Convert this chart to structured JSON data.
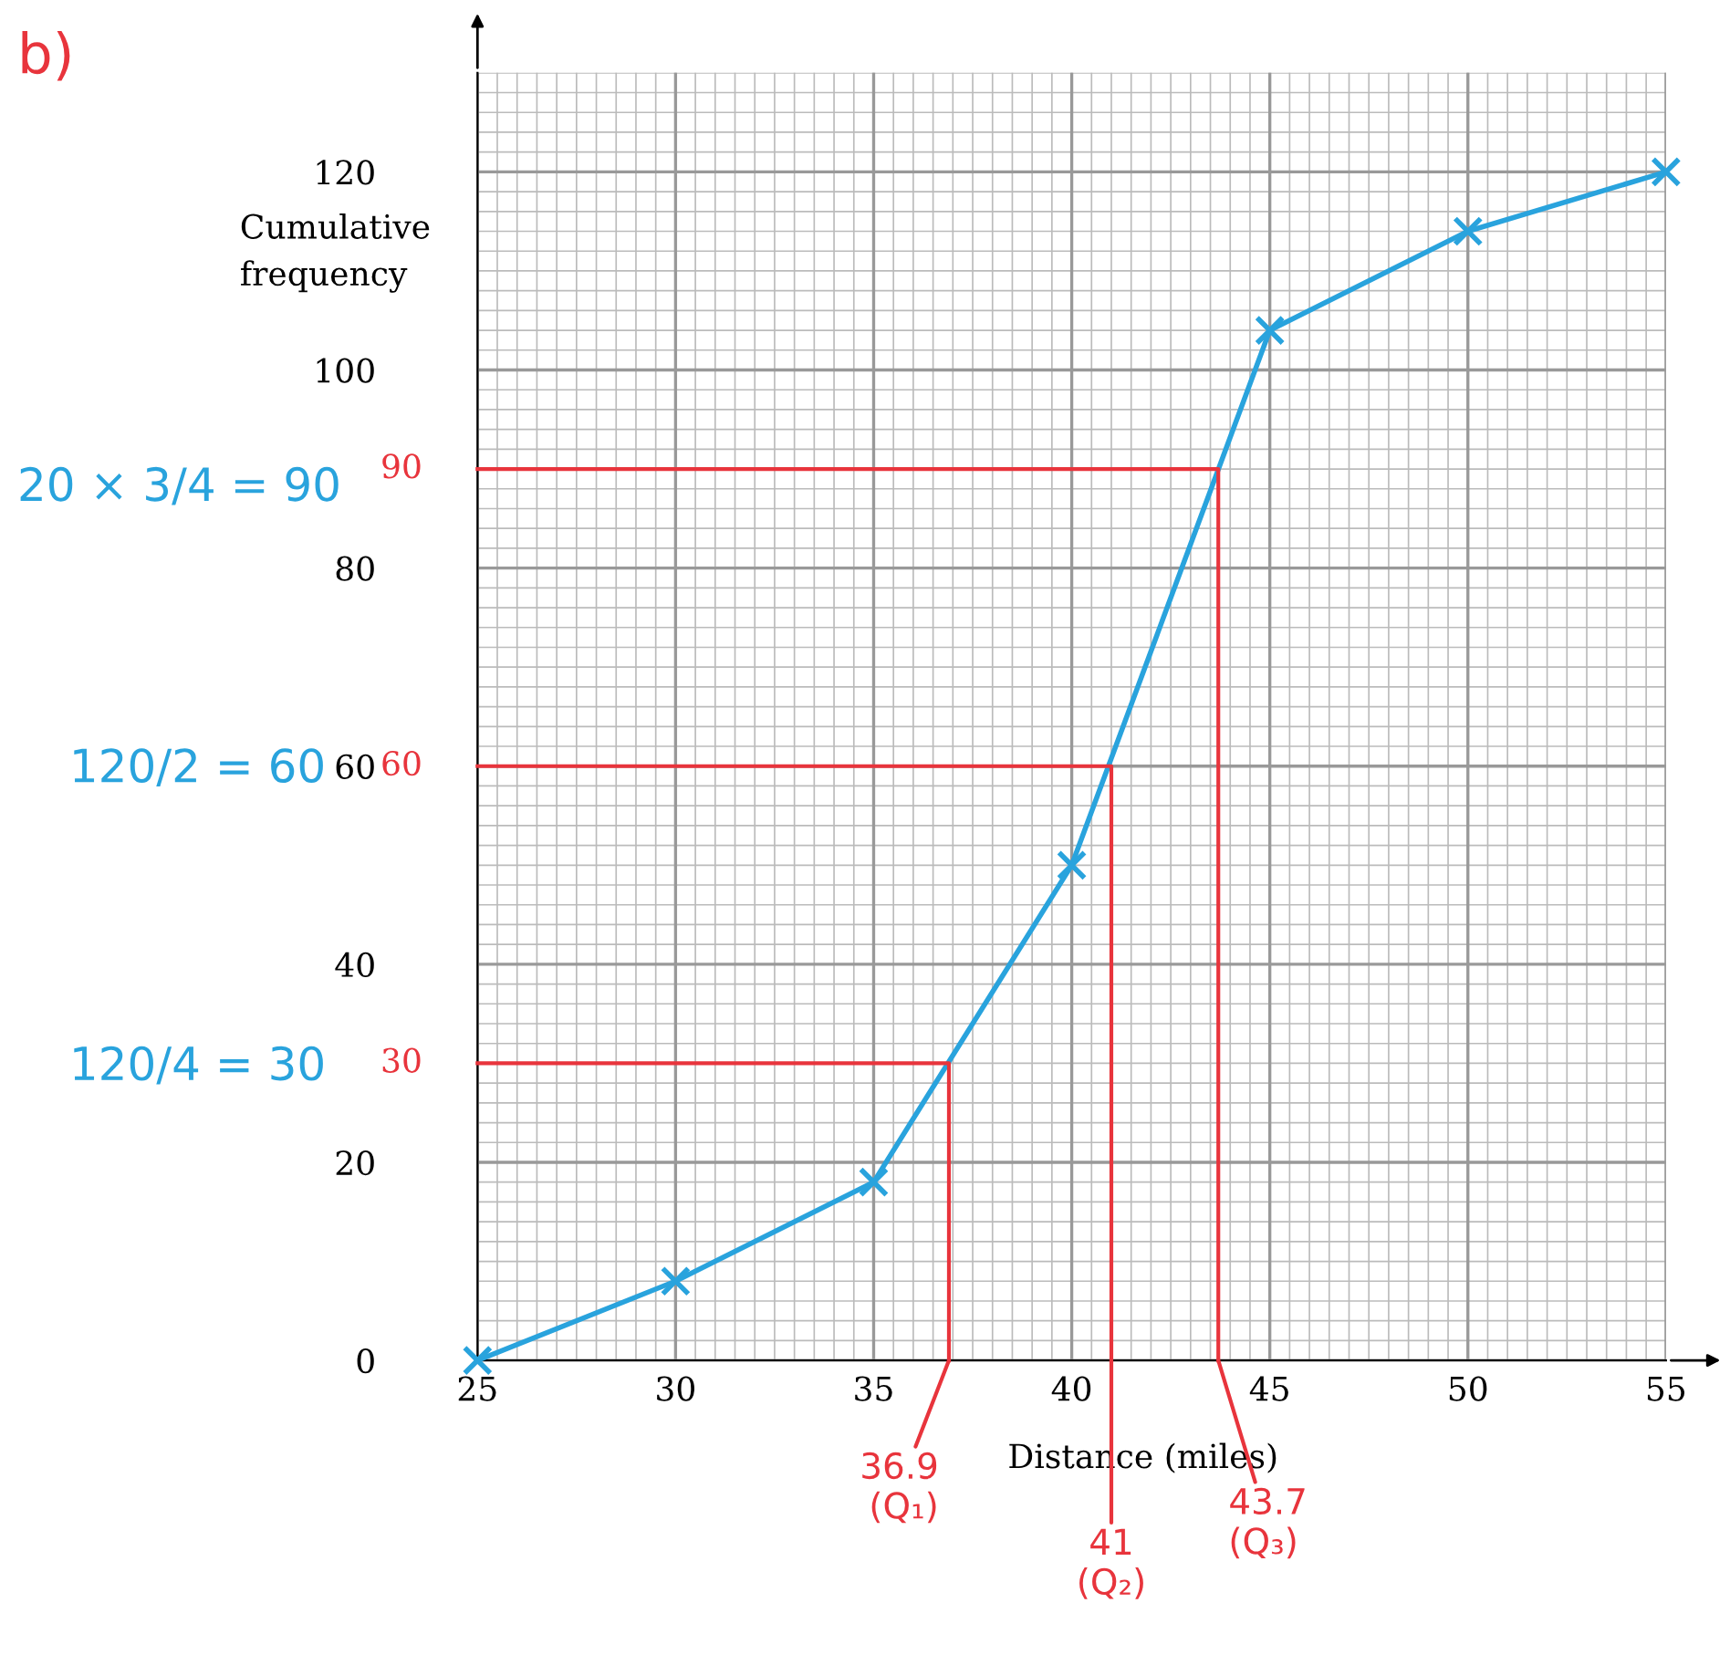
{
  "chart_data": {
    "type": "line",
    "xlabel": "Distance (miles)",
    "ylabel": "Cumulative\nfrequency",
    "xlim": [
      25,
      55
    ],
    "ylim": [
      0,
      130
    ],
    "xticks": [
      25,
      30,
      35,
      40,
      45,
      50,
      55
    ],
    "yticks": [
      0,
      20,
      40,
      60,
      80,
      100,
      120
    ],
    "grid": true,
    "marker": "cross",
    "line_style": "solid",
    "series": [
      {
        "x": [
          25,
          30,
          35,
          40,
          45,
          50,
          55
        ],
        "values": [
          0,
          8,
          18,
          50,
          104,
          114,
          120
        ],
        "color": "#29a3dd"
      },
      {
        "x": [
          25,
          36.9,
          36.9
        ],
        "values": [
          30,
          30,
          0
        ],
        "color": "#e8343c",
        "marker": "none"
      },
      {
        "x": [
          25,
          41,
          41
        ],
        "values": [
          60,
          60,
          0
        ],
        "color": "#e8343c",
        "marker": "none"
      },
      {
        "x": [
          25,
          43.7,
          43.7
        ],
        "values": [
          90,
          90,
          0
        ],
        "color": "#e8343c",
        "marker": "none"
      }
    ],
    "annotations": [
      "b)",
      "20 × 3/4 = 90",
      "120/2 = 60",
      "120/4 = 30",
      {
        "text": "30",
        "x": 25,
        "y": 30
      },
      {
        "text": "60",
        "x": 25,
        "y": 60
      },
      {
        "text": "90",
        "x": 25,
        "y": 90
      },
      {
        "text": "36.9\n(Q₁)",
        "x": 36.9,
        "y": 0
      },
      {
        "text": "41\n(Q₂)",
        "x": 41,
        "y": 0
      },
      {
        "text": "43.7\n(Q₃)",
        "x": 43.7,
        "y": 0
      }
    ]
  }
}
